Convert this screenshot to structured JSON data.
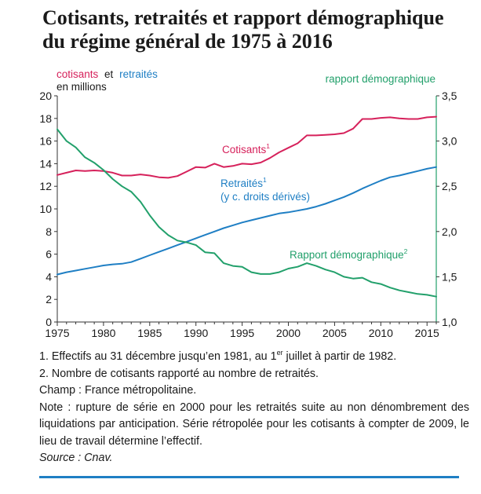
{
  "title": {
    "line1": "Cotisants, retraités et rapport démographique",
    "line2": "du régime général de 1975 à 2016"
  },
  "colors": {
    "cotisants": "#d6215b",
    "retraites": "#1f7fc4",
    "rapport": "#22a06b",
    "axis": "#333333"
  },
  "chart_data": {
    "type": "line",
    "left_axis": {
      "label_part1": "cotisants",
      "label_part2": "et",
      "label_part3": "retraités",
      "label_line2": "en millions",
      "range": [
        0,
        20
      ],
      "ticks": [
        "0",
        "2",
        "4",
        "6",
        "8",
        "10",
        "12",
        "14",
        "16",
        "18",
        "20"
      ]
    },
    "right_axis": {
      "label": "rapport démographique",
      "range": [
        1.0,
        3.5
      ],
      "ticks": [
        "1,0",
        "1,5",
        "2,0",
        "2,5",
        "3,0",
        "3,5"
      ]
    },
    "x_ticks": [
      "1975",
      "1980",
      "1985",
      "1990",
      "1995",
      "2000",
      "2005",
      "2010",
      "2015"
    ],
    "x_range": [
      1975,
      2016
    ],
    "annotations": {
      "cotisants": "Cotisants",
      "cotisants_sup": "1",
      "retraites": "Retraités",
      "retraites_sup": "1",
      "retraites_line2": "(y c. droits dérivés)",
      "rapport": "Rapport démographique",
      "rapport_sup": "2"
    },
    "series": [
      {
        "name": "Cotisants",
        "axis": "left",
        "x": [
          1975,
          1976,
          1977,
          1978,
          1979,
          1980,
          1981,
          1982,
          1983,
          1984,
          1985,
          1986,
          1987,
          1988,
          1989,
          1990,
          1991,
          1992,
          1993,
          1994,
          1995,
          1996,
          1997,
          1998,
          1999,
          2000,
          2001,
          2002,
          2003,
          2004,
          2005,
          2006,
          2007,
          2008,
          2009,
          2010,
          2011,
          2012,
          2013,
          2014,
          2015,
          2016
        ],
        "values": [
          13.0,
          13.2,
          13.4,
          13.35,
          13.4,
          13.35,
          13.2,
          12.95,
          12.95,
          13.05,
          12.95,
          12.8,
          12.75,
          12.9,
          13.3,
          13.7,
          13.65,
          14.0,
          13.7,
          13.8,
          14.0,
          13.95,
          14.1,
          14.5,
          15.0,
          15.4,
          15.8,
          16.5,
          16.5,
          16.55,
          16.6,
          16.7,
          17.1,
          17.95,
          17.95,
          18.05,
          18.1,
          18.0,
          17.95,
          17.95,
          18.1,
          18.15
        ]
      },
      {
        "name": "Retraités",
        "axis": "left",
        "x": [
          1975,
          1976,
          1977,
          1978,
          1979,
          1980,
          1981,
          1982,
          1983,
          1984,
          1985,
          1986,
          1987,
          1988,
          1989,
          1990,
          1991,
          1992,
          1993,
          1994,
          1995,
          1996,
          1997,
          1998,
          1999,
          2000,
          2001,
          2002,
          2003,
          2004,
          2005,
          2006,
          2007,
          2008,
          2009,
          2010,
          2011,
          2012,
          2013,
          2014,
          2015,
          2016
        ],
        "values": [
          4.2,
          4.4,
          4.55,
          4.7,
          4.85,
          5.0,
          5.1,
          5.15,
          5.3,
          5.6,
          5.9,
          6.2,
          6.5,
          6.8,
          7.1,
          7.4,
          7.7,
          8.0,
          8.3,
          8.55,
          8.8,
          9.0,
          9.2,
          9.4,
          9.6,
          9.7,
          9.85,
          10.0,
          10.2,
          10.45,
          10.75,
          11.05,
          11.4,
          11.8,
          12.15,
          12.5,
          12.8,
          12.95,
          13.15,
          13.35,
          13.55,
          13.7
        ]
      },
      {
        "name": "Rapport démographique",
        "axis": "right",
        "x": [
          1975,
          1976,
          1977,
          1978,
          1979,
          1980,
          1981,
          1982,
          1983,
          1984,
          1985,
          1986,
          1987,
          1988,
          1989,
          1990,
          1991,
          1992,
          1993,
          1994,
          1995,
          1996,
          1997,
          1998,
          1999,
          2000,
          2001,
          2002,
          2003,
          2004,
          2005,
          2006,
          2007,
          2008,
          2009,
          2010,
          2011,
          2012,
          2013,
          2014,
          2015,
          2016
        ],
        "values": [
          3.13,
          3.0,
          2.93,
          2.82,
          2.76,
          2.68,
          2.58,
          2.5,
          2.44,
          2.33,
          2.18,
          2.05,
          1.96,
          1.9,
          1.88,
          1.85,
          1.77,
          1.76,
          1.65,
          1.62,
          1.61,
          1.55,
          1.53,
          1.53,
          1.55,
          1.59,
          1.61,
          1.65,
          1.62,
          1.58,
          1.55,
          1.5,
          1.48,
          1.49,
          1.44,
          1.42,
          1.38,
          1.35,
          1.33,
          1.31,
          1.3,
          1.28
        ]
      }
    ]
  },
  "notes": {
    "n1_pre": "1. Effectifs au 31 décembre jusqu’en 1981, au 1",
    "n1_sup": "er",
    "n1_post": " juillet à partir de 1982.",
    "n2": "2. Nombre de cotisants rapporté au nombre de retraités.",
    "champ": "Champ : France métropolitaine.",
    "note": "Note : rupture de série en 2000 pour les retraités suite au non dénombrement des liquidations par anticipation. Série rétropolée pour les cotisants à compter de 2009, le lieu de travail détermine l’effectif.",
    "source": "Source : Cnav."
  }
}
